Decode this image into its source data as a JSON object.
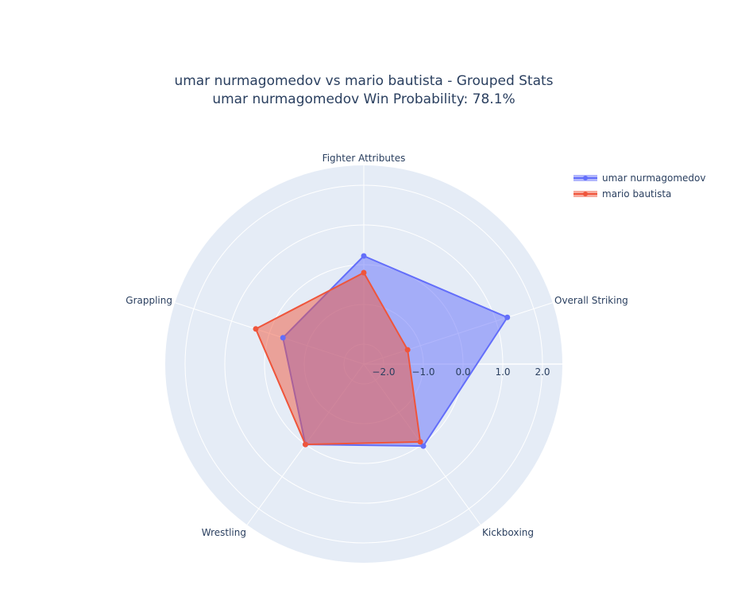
{
  "title": {
    "line1": "umar nurmagomedov vs mario bautista - Grouped Stats",
    "line2": "umar nurmagomedov Win Probability: 78.1%"
  },
  "legend": {
    "items": [
      {
        "label": "umar nurmagomedov",
        "color": "#636efa"
      },
      {
        "label": "mario bautista",
        "color": "#ef553b"
      }
    ]
  },
  "chart_data": {
    "type": "radar",
    "title": "umar nurmagomedov vs mario bautista - Grouped Stats<br>umar nurmagomedov Win Probability: 78.1%",
    "categories": [
      "Fighter Attributes",
      "Overall Striking",
      "Kickboxing",
      "Wrestling",
      "Grappling"
    ],
    "series": [
      {
        "name": "umar nurmagomedov",
        "color": "#636efa",
        "values": [
          0.22,
          1.3,
          0.05,
          0.0,
          -0.36
        ]
      },
      {
        "name": "mario bautista",
        "color": "#ef553b",
        "values": [
          -0.2,
          -1.34,
          -0.08,
          0.0,
          0.36
        ]
      }
    ],
    "radial_range": [
      -2.5,
      2.5
    ],
    "radial_ticks": [
      "−2.0",
      "−1.0",
      "0.0",
      "1.0",
      "2.0"
    ],
    "radial_tick_values": [
      -2,
      -1,
      0,
      1,
      2
    ],
    "grid": true,
    "fill": "toself",
    "legend_position": "top-right",
    "bgcolor": "#e5ecf6"
  }
}
